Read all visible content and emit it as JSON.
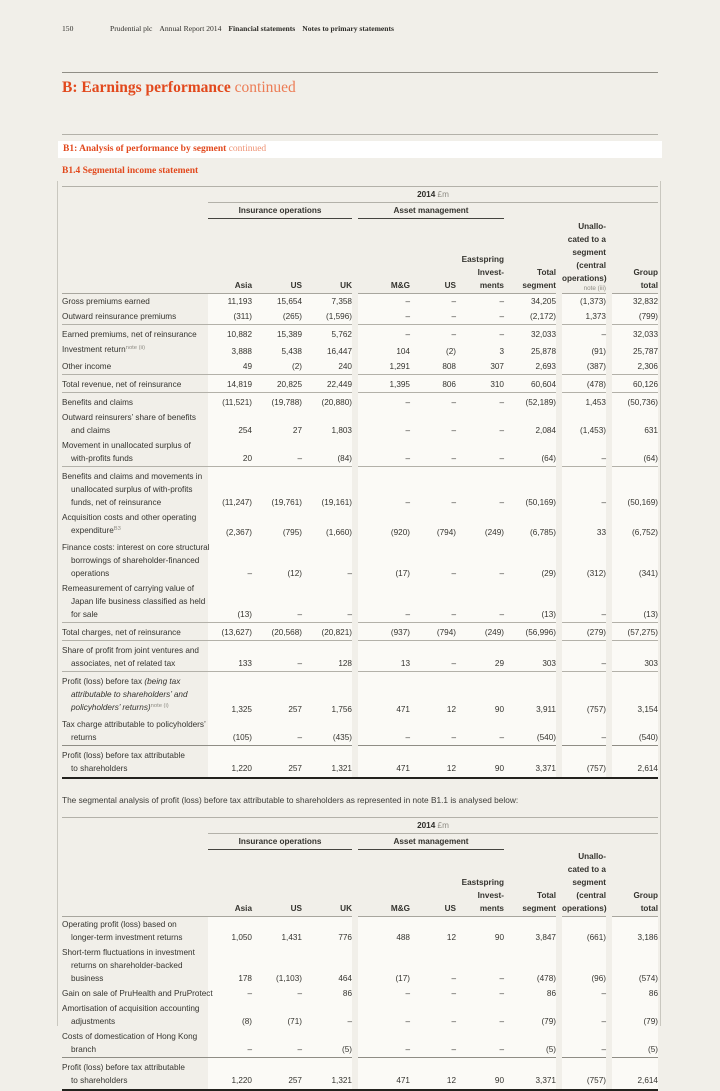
{
  "colors": {
    "accent_orange": "#e2491d",
    "page_background": "#f1efe9",
    "table_panel": "#fbfaf6"
  },
  "page_header": {
    "page_number": "150",
    "brand": "Prudential plc",
    "report": "Annual Report 2014",
    "section": "Financial statements",
    "subsection": "Notes to primary statements"
  },
  "section_heading": {
    "title": "B:  Earnings performance",
    "continued": "continued"
  },
  "banner": {
    "title": "B1:  Analysis of performance by segment",
    "continued": "continued"
  },
  "sub_heading": "B1.4 Segmental income statement",
  "intro_text": "The segmental analysis of profit (loss) before tax attributable to shareholders as represented in note B1.1 is analysed below:",
  "table_header": {
    "year": "2014",
    "unit": "£m",
    "group_insurance": "Insurance operations",
    "group_asset": "Asset management",
    "columns": [
      "Asia",
      "US",
      "UK",
      "M&G",
      "US",
      "Eastspring\nInvest-\nments",
      "Total\nsegment",
      "Unallo-\ncated to a\nsegment\n(central\noperations)",
      "Group\ntotal"
    ],
    "note": "note (iii)"
  },
  "table1_rows": [
    {
      "label": "Gross premiums earned",
      "values": [
        "11,193",
        "15,654",
        "7,358",
        "–",
        "–",
        "–",
        "34,205",
        "(1,373)",
        "32,832"
      ],
      "cls": ""
    },
    {
      "label": "Outward reinsurance premiums",
      "values": [
        "(311)",
        "(265)",
        "(1,596)",
        "–",
        "–",
        "–",
        "(2,172)",
        "1,373",
        "(799)"
      ],
      "cls": ""
    },
    {
      "label": "Earned premiums, net of reinsurance",
      "values": [
        "10,882",
        "15,389",
        "5,762",
        "–",
        "–",
        "–",
        "32,033",
        "–",
        "32,033"
      ],
      "cls": "rt"
    },
    {
      "label": [
        {
          "t": "Investment return"
        },
        {
          "t": "note (ii)",
          "s": true
        }
      ],
      "values": [
        "3,888",
        "5,438",
        "16,447",
        "104",
        "(2)",
        "3",
        "25,878",
        "(91)",
        "25,787"
      ],
      "cls": ""
    },
    {
      "label": "Other income",
      "values": [
        "49",
        "(2)",
        "240",
        "1,291",
        "808",
        "307",
        "2,693",
        "(387)",
        "2,306"
      ],
      "cls": ""
    },
    {
      "label": "Total revenue, net of reinsurance",
      "values": [
        "14,819",
        "20,825",
        "22,449",
        "1,395",
        "806",
        "310",
        "60,604",
        "(478)",
        "60,126"
      ],
      "cls": "rt"
    },
    {
      "label": "Benefits and claims",
      "values": [
        "(11,521)",
        "(19,788)",
        "(20,880)",
        "–",
        "–",
        "–",
        "(52,189)",
        "1,453",
        "(50,736)"
      ],
      "cls": "rt"
    },
    {
      "label": "Outward reinsurers’ share of benefits\nand claims",
      "values": [
        "254",
        "27",
        "1,803",
        "–",
        "–",
        "–",
        "2,084",
        "(1,453)",
        "631"
      ],
      "cls": ""
    },
    {
      "label": "Movement in unallocated surplus of\nwith-profits funds",
      "values": [
        "20",
        "–",
        "(84)",
        "–",
        "–",
        "–",
        "(64)",
        "–",
        "(64)"
      ],
      "cls": ""
    },
    {
      "label": "Benefits and claims and movements in\nunallocated surplus of with-profits\nfunds, net of reinsurance",
      "values": [
        "(11,247)",
        "(19,761)",
        "(19,161)",
        "–",
        "–",
        "–",
        "(50,169)",
        "–",
        "(50,169)"
      ],
      "cls": "rt"
    },
    {
      "label": [
        {
          "t": "Acquisition costs and other operating\nexpenditure"
        },
        {
          "t": "B3",
          "s": true
        }
      ],
      "values": [
        "(2,367)",
        "(795)",
        "(1,660)",
        "(920)",
        "(794)",
        "(249)",
        "(6,785)",
        "33",
        "(6,752)"
      ],
      "cls": ""
    },
    {
      "label": "Finance costs: interest on core structural\nborrowings of shareholder-financed\noperations",
      "values": [
        "–",
        "(12)",
        "–",
        "(17)",
        "–",
        "–",
        "(29)",
        "(312)",
        "(341)"
      ],
      "cls": ""
    },
    {
      "label": "Remeasurement of carrying value of\nJapan life business classified as held\nfor sale",
      "values": [
        "(13)",
        "–",
        "–",
        "–",
        "–",
        "–",
        "(13)",
        "–",
        "(13)"
      ],
      "cls": ""
    },
    {
      "label": "Total charges, net of reinsurance",
      "values": [
        "(13,627)",
        "(20,568)",
        "(20,821)",
        "(937)",
        "(794)",
        "(249)",
        "(56,996)",
        "(279)",
        "(57,275)"
      ],
      "cls": "rt"
    },
    {
      "label": "Share of profit from joint ventures and\nassociates, net of related tax",
      "values": [
        "133",
        "–",
        "128",
        "13",
        "–",
        "29",
        "303",
        "–",
        "303"
      ],
      "cls": "rt"
    },
    {
      "label": [
        {
          "t": "Profit (loss) before tax "
        },
        {
          "t": "(being tax\nattributable to shareholders’ and\npolicyholders’ returns)",
          "i": true
        },
        {
          "t": "note (i)",
          "s": true
        }
      ],
      "values": [
        "1,325",
        "257",
        "1,756",
        "471",
        "12",
        "90",
        "3,911",
        "(757)",
        "3,154"
      ],
      "cls": "rt"
    },
    {
      "label": "Tax charge attributable to policyholders’\nreturns",
      "values": [
        "(105)",
        "–",
        "(435)",
        "–",
        "–",
        "–",
        "(540)",
        "–",
        "(540)"
      ],
      "cls": ""
    },
    {
      "label": "Profit (loss) before tax attributable\nto shareholders",
      "values": [
        "1,220",
        "257",
        "1,321",
        "471",
        "12",
        "90",
        "3,371",
        "(757)",
        "2,614"
      ],
      "cls": "final"
    }
  ],
  "table2_rows": [
    {
      "label": "Operating profit (loss) based on\nlonger-term investment returns",
      "values": [
        "1,050",
        "1,431",
        "776",
        "488",
        "12",
        "90",
        "3,847",
        "(661)",
        "3,186"
      ],
      "cls": ""
    },
    {
      "label": "Short-term fluctuations in investment\nreturns on shareholder-backed\nbusiness",
      "values": [
        "178",
        "(1,103)",
        "464",
        "(17)",
        "–",
        "–",
        "(478)",
        "(96)",
        "(574)"
      ],
      "cls": ""
    },
    {
      "label": "Gain on sale of PruHealth and PruProtect",
      "values": [
        "–",
        "–",
        "86",
        "–",
        "–",
        "–",
        "86",
        "–",
        "86"
      ],
      "cls": ""
    },
    {
      "label": "Amortisation of acquisition accounting\nadjustments",
      "values": [
        "(8)",
        "(71)",
        "–",
        "–",
        "–",
        "–",
        "(79)",
        "–",
        "(79)"
      ],
      "cls": ""
    },
    {
      "label": "Costs of domestication of Hong Kong\nbranch",
      "values": [
        "–",
        "–",
        "(5)",
        "–",
        "–",
        "–",
        "(5)",
        "–",
        "(5)"
      ],
      "cls": ""
    },
    {
      "label": "Profit (loss) before tax attributable\nto shareholders",
      "values": [
        "1,220",
        "257",
        "1,321",
        "471",
        "12",
        "90",
        "3,371",
        "(757)",
        "2,614"
      ],
      "cls": "final"
    }
  ]
}
